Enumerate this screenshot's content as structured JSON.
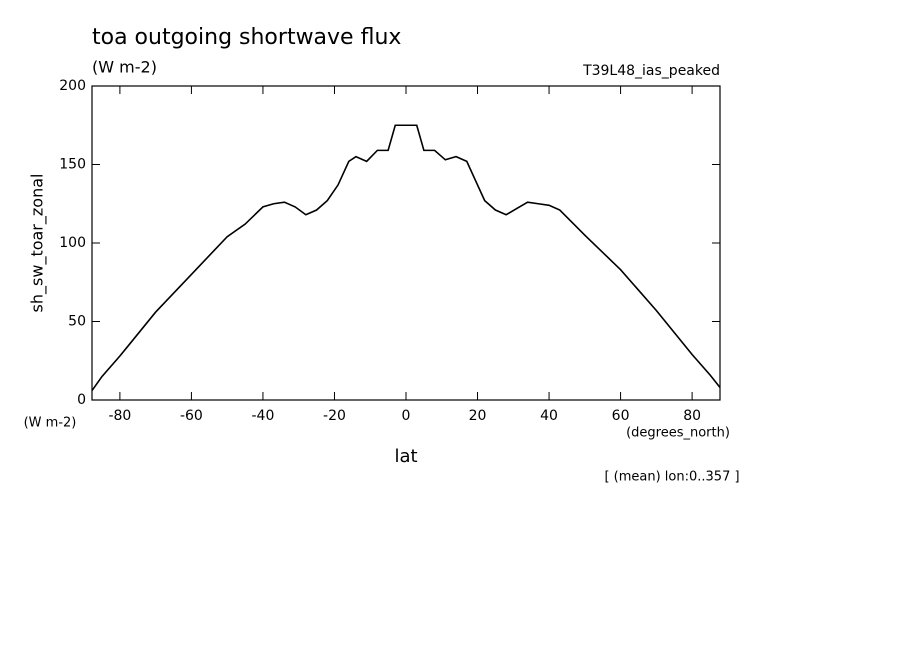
{
  "chart_data": {
    "type": "line",
    "title": "toa outgoing shortwave flux",
    "units": "(W m-2)",
    "dataset": "T39L48_ias_peaked",
    "ylabel": "sh_sw_toar_zonal",
    "y_units": "(W m-2)",
    "xlabel": "lat",
    "x_units": "(degrees_north)",
    "note": "[ (mean) lon:0..357 ]",
    "x": [
      -87.8,
      -85,
      -80,
      -70,
      -60,
      -50,
      -45,
      -40,
      -37,
      -34,
      -31,
      -28,
      -25,
      -22,
      -19,
      -16,
      -14,
      -11,
      -8,
      -5,
      -3,
      0,
      3,
      5,
      8,
      11,
      14,
      17,
      20,
      22,
      25,
      28,
      31,
      34,
      37,
      40,
      43,
      50,
      60,
      70,
      80,
      85,
      87.8
    ],
    "series": [
      {
        "name": "sh_sw_toar_zonal",
        "color": "#000000",
        "values": [
          6,
          15,
          28,
          56,
          80,
          104,
          112,
          123,
          125,
          126,
          123,
          118,
          121,
          127,
          137,
          152,
          155,
          152,
          159,
          159,
          175,
          175,
          175,
          159,
          159,
          153,
          155,
          152,
          137,
          127,
          121,
          118,
          122,
          126,
          125,
          124,
          121,
          105,
          83,
          57,
          29,
          16,
          8
        ]
      }
    ],
    "xlim": [
      -87.8,
      87.8
    ],
    "ylim": [
      0,
      200
    ],
    "xticks": [
      -80,
      -60,
      -40,
      -20,
      0,
      20,
      40,
      60,
      80
    ],
    "yticks": [
      0,
      50,
      100,
      150,
      200
    ]
  }
}
